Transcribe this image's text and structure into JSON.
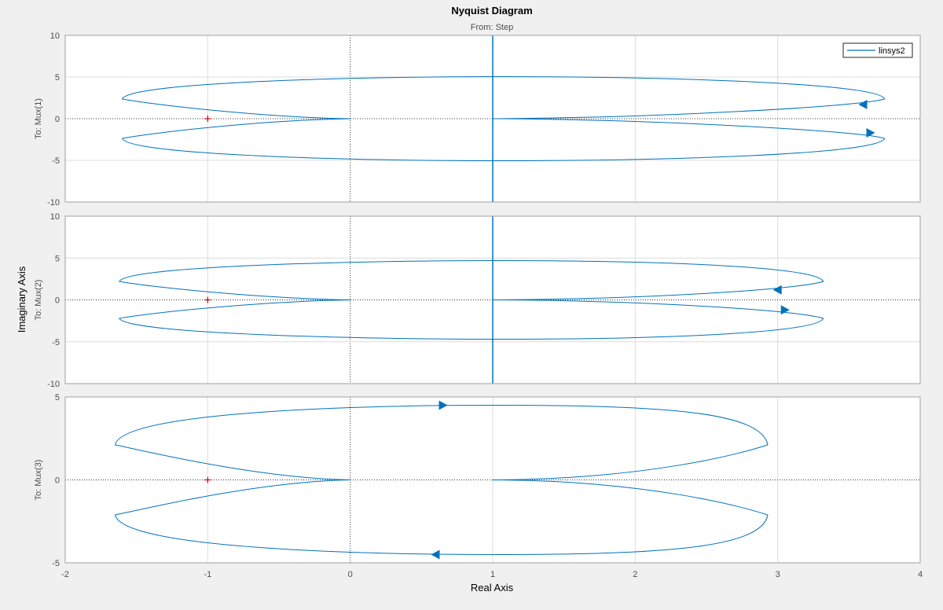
{
  "title": "Nyquist Diagram",
  "subtitle": "From: Step",
  "xlabel": "Real Axis",
  "ylabel": "Imaginary Axis",
  "legend": {
    "label": "linsys2",
    "placement": "top-right"
  },
  "colors": {
    "curve": "#0072bd",
    "critical_point": "#d40000",
    "grid": "#dcdcdc",
    "axis": "#262626"
  },
  "chart_data": [
    {
      "type": "line",
      "row_label": "To: Mux(1)",
      "xlim": [
        -2,
        4
      ],
      "ylim": [
        -10,
        10
      ],
      "xticks": [
        -2,
        -1,
        0,
        1,
        2,
        3,
        4
      ],
      "yticks": [
        10,
        5,
        0,
        -5,
        -10
      ],
      "grid": true,
      "critical_point": [
        -1,
        0
      ],
      "contour": {
        "left": -1.6,
        "right": 3.75,
        "top": 5.05,
        "cusp": 0,
        "right_cusp": 1.0,
        "vertical_line_x": 1.0
      },
      "arrows": [
        {
          "x": 3.6,
          "y": 1.7,
          "dir": "left"
        },
        {
          "x": 3.65,
          "y": -1.7,
          "dir": "right"
        }
      ]
    },
    {
      "type": "line",
      "row_label": "To: Mux(2)",
      "xlim": [
        -2,
        4
      ],
      "ylim": [
        -10,
        10
      ],
      "xticks": [
        -2,
        -1,
        0,
        1,
        2,
        3,
        4
      ],
      "yticks": [
        10,
        5,
        0,
        -5,
        -10
      ],
      "grid": true,
      "critical_point": [
        -1,
        0
      ],
      "contour": {
        "left": -1.62,
        "right": 3.32,
        "top": 4.7,
        "cusp": 0,
        "right_cusp": 1.0,
        "vertical_line_x": 1.0
      },
      "arrows": [
        {
          "x": 3.0,
          "y": 1.2,
          "dir": "left"
        },
        {
          "x": 3.05,
          "y": -1.2,
          "dir": "right"
        }
      ]
    },
    {
      "type": "line",
      "row_label": "To: Mux(3)",
      "xlim": [
        -2,
        4
      ],
      "ylim": [
        -5,
        5
      ],
      "xticks": [
        -2,
        -1,
        0,
        1,
        2,
        3,
        4
      ],
      "yticks": [
        5,
        0,
        -5
      ],
      "grid": true,
      "critical_point": [
        -1,
        0
      ],
      "contour": {
        "left": -1.65,
        "right": 2.93,
        "top": 4.5,
        "cusp": 0,
        "right_cusp": 1.0,
        "vertical_line_x": null
      },
      "arrows": [
        {
          "x": 0.65,
          "y": 4.5,
          "dir": "right"
        },
        {
          "x": 0.6,
          "y": -4.5,
          "dir": "left"
        }
      ]
    }
  ]
}
